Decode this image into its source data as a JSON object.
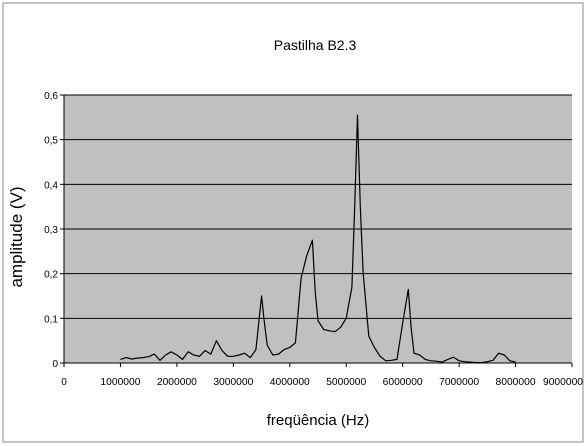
{
  "chart_data": {
    "type": "line",
    "title": "Pastilha B2.3",
    "xlabel": "freqüência (Hz)",
    "ylabel": "amplitude  (V)",
    "xlim": [
      0,
      9000000
    ],
    "ylim": [
      0,
      0.6
    ],
    "x_ticks": [
      0,
      1000000,
      2000000,
      3000000,
      4000000,
      5000000,
      6000000,
      7000000,
      8000000,
      9000000
    ],
    "x_tick_labels": [
      "0",
      "1000000",
      "2000000",
      "3000000",
      "4000000",
      "5000000",
      "6000000",
      "7000000",
      "8000000",
      "9000000"
    ],
    "y_ticks": [
      0,
      0.1,
      0.2,
      0.3,
      0.4,
      0.5,
      0.6
    ],
    "y_tick_labels": [
      "0",
      "0,1",
      "0,2",
      "0,3",
      "0,4",
      "0,5",
      "0,6"
    ],
    "grid": "horizontal",
    "legend": "none",
    "colors": {
      "plot_background": "#c0c0c0",
      "series_line": "#000000",
      "gridline": "#000000",
      "frame_border": "#8a8a8a"
    },
    "series": [
      {
        "x": [
          1000000,
          1100000,
          1200000,
          1300000,
          1400000,
          1500000,
          1600000,
          1700000,
          1800000,
          1900000,
          2000000,
          2100000,
          2200000,
          2300000,
          2400000,
          2500000,
          2600000,
          2700000,
          2800000,
          2900000,
          3000000,
          3100000,
          3200000,
          3300000,
          3400000,
          3500000,
          3550000,
          3600000,
          3700000,
          3800000,
          3900000,
          4000000,
          4100000,
          4200000,
          4300000,
          4400000,
          4450000,
          4500000,
          4600000,
          4700000,
          4800000,
          4900000,
          5000000,
          5100000,
          5150000,
          5200000,
          5250000,
          5300000,
          5400000,
          5500000,
          5600000,
          5700000,
          5800000,
          5900000,
          6000000,
          6100000,
          6150000,
          6200000,
          6300000,
          6400000,
          6500000,
          6600000,
          6700000,
          6800000,
          6900000,
          7000000,
          7100000,
          7200000,
          7300000,
          7400000,
          7500000,
          7600000,
          7700000,
          7800000,
          7900000,
          8000000
        ],
        "y": [
          0.008,
          0.012,
          0.009,
          0.011,
          0.012,
          0.014,
          0.02,
          0.006,
          0.018,
          0.025,
          0.018,
          0.008,
          0.025,
          0.018,
          0.015,
          0.028,
          0.02,
          0.05,
          0.028,
          0.015,
          0.015,
          0.018,
          0.022,
          0.012,
          0.03,
          0.15,
          0.09,
          0.04,
          0.018,
          0.02,
          0.03,
          0.035,
          0.045,
          0.19,
          0.24,
          0.275,
          0.16,
          0.095,
          0.075,
          0.072,
          0.07,
          0.08,
          0.1,
          0.17,
          0.35,
          0.555,
          0.35,
          0.2,
          0.06,
          0.035,
          0.015,
          0.005,
          0.006,
          0.008,
          0.09,
          0.165,
          0.08,
          0.022,
          0.018,
          0.008,
          0.005,
          0.004,
          0.002,
          0.008,
          0.013,
          0.005,
          0.003,
          0.002,
          0.001,
          0.001,
          0.003,
          0.006,
          0.022,
          0.018,
          0.005,
          0.002
        ]
      }
    ]
  }
}
